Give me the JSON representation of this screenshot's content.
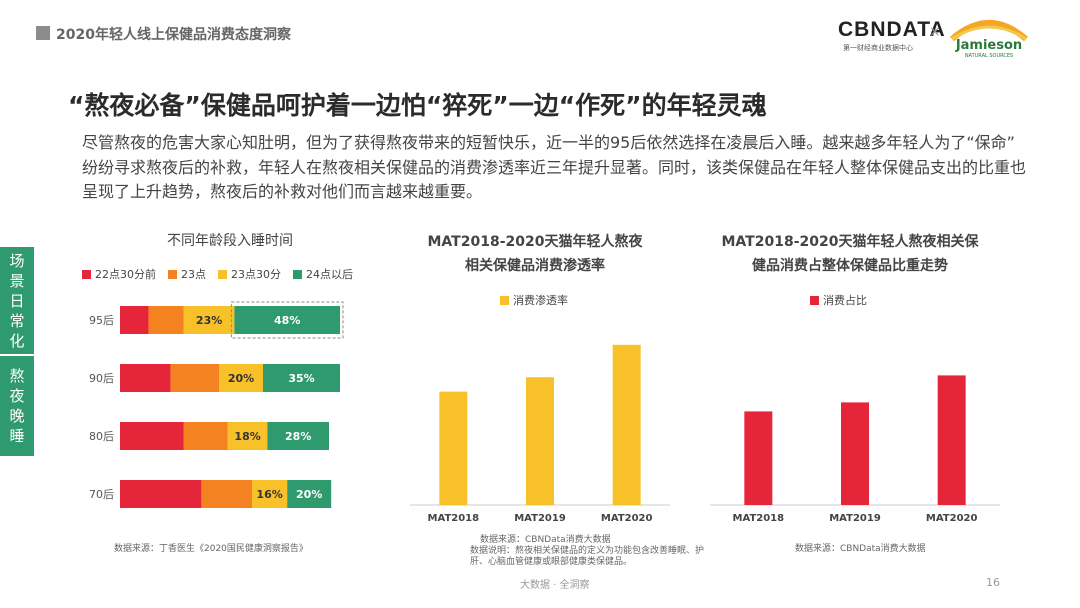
{
  "header": {
    "title": "2020年轻人线上保健品消费态度洞察"
  },
  "logos": {
    "cbn": "CBNDATA",
    "cbn_sub": "第一财经商业数据中心",
    "separator": "×",
    "jamieson": "Jamieson",
    "jamieson_sub": "NATURAL SOURCES"
  },
  "main_title": "“熬夜必备”保健品呵护着一边怕“猝死”一边“作死”的年轻灵魂",
  "intro": "尽管熬夜的危害大家心知肚明，但为了获得熬夜带来的短暂快乐，近一半的95后依然选择在凌晨后入睡。越来越多年轻人为了“保命” 纷纷寻求熬夜后的补救，年轻人在熬夜相关保健品的消费渗透率近三年提升显著。同时，该类保健品在年轻人整体保健品支出的比重也呈现了上升趋势，熬夜后的补救对他们而言越来越重要。",
  "side_tabs": [
    "场景日常化",
    "熬夜晚睡"
  ],
  "colors": {
    "red": "#e5253a",
    "orange": "#f58220",
    "yellow": "#f8c12a",
    "green": "#2e9a6e",
    "side": "#2e9a6e"
  },
  "chart_data": [
    {
      "type": "bar",
      "orientation": "horizontal",
      "stacked": true,
      "title": "不同年龄段入睡时间",
      "categories": [
        "95后",
        "90后",
        "80后",
        "70后"
      ],
      "series": [
        {
          "name": "22点30分前",
          "color": "#e5253a",
          "values": [
            0.13,
            0.23,
            0.29,
            0.37
          ],
          "labels": [
            "",
            "",
            "",
            ""
          ]
        },
        {
          "name": "23点",
          "color": "#f58220",
          "values": [
            0.16,
            0.22,
            0.2,
            0.23
          ],
          "labels": [
            "",
            "",
            "",
            ""
          ]
        },
        {
          "name": "23点30分",
          "color": "#f8c12a",
          "values": [
            0.23,
            0.2,
            0.18,
            0.16
          ],
          "labels": [
            "23%",
            "20%",
            "18%",
            "16%"
          ]
        },
        {
          "name": "24点以后",
          "color": "#2e9a6e",
          "values": [
            0.48,
            0.35,
            0.28,
            0.2
          ],
          "labels": [
            "48%",
            "35%",
            "28%",
            "20%"
          ]
        }
      ],
      "highlight": "95后 24点以后",
      "source": "数据来源：丁香医生《2020国民健康洞察报告》"
    },
    {
      "type": "bar",
      "title_lines": [
        "MAT2018-2020天猫年轻人熬夜",
        "相关保健品消费渗透率"
      ],
      "categories": [
        "MAT2018",
        "MAT2019",
        "MAT2020"
      ],
      "series": [
        {
          "name": "消费渗透率",
          "color": "#f8c12a",
          "values": [
            0.63,
            0.71,
            0.89
          ]
        }
      ],
      "ylim": [
        0,
        1
      ],
      "source_lines": [
        "数据来源：CBNData消费大数据",
        "数据说明：熬夜相关保健品的定义为功能包含改善睡眠、护",
        "肝、心脑血管健康或眼部健康类保健品。"
      ]
    },
    {
      "type": "bar",
      "title_lines": [
        "MAT2018-2020天猫年轻人熬夜相关保",
        "健品消费占整体保健品比重走势"
      ],
      "categories": [
        "MAT2018",
        "MAT2019",
        "MAT2020"
      ],
      "series": [
        {
          "name": "消费占比",
          "color": "#e5253a",
          "values": [
            0.52,
            0.57,
            0.72
          ]
        }
      ],
      "ylim": [
        0,
        1
      ],
      "source": "数据来源：CBNData消费大数据"
    }
  ],
  "footer": "大数据 · 全洞察",
  "page_number": "16"
}
